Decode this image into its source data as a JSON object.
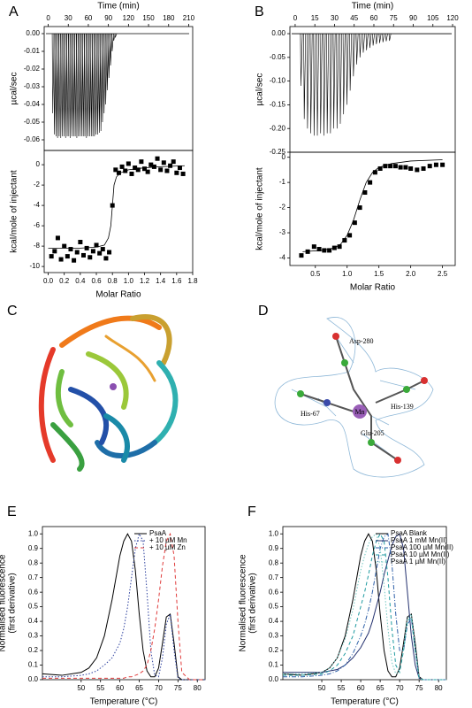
{
  "chart_data": [
    {
      "type": "spike",
      "panel": "A",
      "xlabel": "Time (min)",
      "xaxis": "top",
      "ylabel": [
        "µcal/sec"
      ],
      "color": "#000000",
      "x": [
        6,
        8.4,
        10.8,
        13.2,
        15.6,
        18,
        20.4,
        22.8,
        25.2,
        27.6,
        30,
        32.4,
        34.8,
        37.2,
        39.6,
        42,
        44.4,
        46.8,
        49.2,
        51.6,
        54,
        56.4,
        58.8,
        61.2,
        63.6,
        66,
        68.4,
        70.8,
        73.2,
        75.6,
        78,
        80.4,
        82.8,
        85.2,
        87.6,
        90,
        92.4,
        94.8,
        97.2,
        99.6
      ],
      "values": [
        -0.045,
        -0.057,
        -0.058,
        -0.059,
        -0.058,
        -0.059,
        -0.058,
        -0.058,
        -0.059,
        -0.058,
        -0.058,
        -0.059,
        -0.058,
        -0.058,
        -0.058,
        -0.059,
        -0.058,
        -0.058,
        -0.058,
        -0.058,
        -0.058,
        -0.059,
        -0.058,
        -0.058,
        -0.058,
        -0.058,
        -0.058,
        -0.057,
        -0.057,
        -0.056,
        -0.055,
        -0.05,
        -0.045,
        -0.04,
        -0.032,
        -0.025,
        -0.018,
        -0.01,
        -0.004,
        -0.002
      ],
      "xlim": [
        -6,
        216
      ],
      "xticks": [
        0,
        30,
        60,
        90,
        120,
        150,
        180,
        210
      ],
      "ylim": [
        -0.066,
        0.004
      ],
      "yticks": [
        {
          "value": 0,
          "label": "0.00"
        },
        -0.01,
        -0.02,
        -0.03,
        -0.04,
        -0.05,
        -0.06
      ]
    },
    {
      "type": "scatter",
      "xlabel": "Molar Ratio",
      "ylabel": [
        "kcal/mole of injectant"
      ],
      "color": "#000000",
      "x": [
        0.04,
        0.08,
        0.12,
        0.16,
        0.2,
        0.24,
        0.28,
        0.32,
        0.36,
        0.4,
        0.44,
        0.48,
        0.52,
        0.56,
        0.6,
        0.64,
        0.68,
        0.72,
        0.76,
        0.8,
        0.84,
        0.88,
        0.92,
        0.96,
        1.0,
        1.04,
        1.08,
        1.12,
        1.16,
        1.2,
        1.24,
        1.28,
        1.32,
        1.36,
        1.4,
        1.44,
        1.48,
        1.52,
        1.56,
        1.6,
        1.64,
        1.68
      ],
      "values": [
        -9.0,
        -8.5,
        -7.2,
        -9.3,
        -8.0,
        -9.0,
        -8.3,
        -9.4,
        -8.6,
        -7.6,
        -8.9,
        -8.2,
        -9.1,
        -8.5,
        -7.9,
        -8.7,
        -8.3,
        -9.2,
        -8.6,
        -4.0,
        -0.5,
        -0.8,
        -0.2,
        -0.6,
        0.1,
        -0.9,
        -0.3,
        -0.5,
        0.3,
        -0.4,
        -0.7,
        0.0,
        -0.2,
        0.6,
        -0.5,
        0.2,
        -0.6,
        -0.1,
        0.3,
        -0.8,
        -0.3,
        -0.9
      ],
      "fit": {
        "x": [
          0,
          0.2,
          0.4,
          0.6,
          0.7,
          0.75,
          0.78,
          0.8,
          0.82,
          0.85,
          0.9,
          1.0,
          1.2,
          1.4,
          1.7
        ],
        "values": [
          -8.2,
          -8.2,
          -8.2,
          -8.1,
          -7.9,
          -7.2,
          -6,
          -4,
          -2,
          -1.2,
          -0.8,
          -0.5,
          -0.3,
          -0.2,
          -0.1
        ]
      },
      "xlim": [
        -0.05,
        1.8
      ],
      "xticks": [
        {
          "value": 0,
          "label": "0.0"
        },
        0.2,
        0.4,
        0.6,
        0.8,
        {
          "value": 1,
          "label": "1.0"
        },
        1.2,
        1.4,
        1.6,
        1.8
      ],
      "ylim": [
        -10.6,
        1.4
      ],
      "yticks": [
        -10,
        -8,
        -6,
        -4,
        -2,
        0
      ]
    },
    {
      "type": "spike",
      "panel": "B",
      "xlabel": "Time (min)",
      "xaxis": "top",
      "ylabel": [
        "µcal/sec"
      ],
      "color": "#000000",
      "x": [
        4,
        6.5,
        9,
        11.5,
        14,
        16.5,
        19,
        21.5,
        24,
        26.5,
        29,
        31.5,
        34,
        36.5,
        39,
        41.5,
        44,
        46.5,
        49,
        51.5,
        54,
        56.5,
        59,
        61.5,
        64,
        66.5,
        69,
        71.5
      ],
      "values": [
        -0.11,
        -0.18,
        -0.2,
        -0.21,
        -0.215,
        -0.215,
        -0.21,
        -0.215,
        -0.21,
        -0.21,
        -0.2,
        -0.2,
        -0.19,
        -0.17,
        -0.15,
        -0.12,
        -0.09,
        -0.065,
        -0.05,
        -0.04,
        -0.035,
        -0.03,
        -0.025,
        -0.022,
        -0.02,
        -0.018,
        -0.016,
        -0.015
      ],
      "xlim": [
        -4,
        122
      ],
      "xticks": [
        0,
        15,
        30,
        45,
        60,
        75,
        90,
        105,
        120
      ],
      "ylim": [
        -0.25,
        0.015
      ],
      "yticks": [
        {
          "value": 0,
          "label": "0.00"
        },
        -0.05,
        {
          "value": -0.1,
          "label": "-0.10"
        },
        -0.15,
        {
          "value": -0.2,
          "label": "-0.20"
        },
        -0.25
      ]
    },
    {
      "type": "scatter",
      "xlabel": "Molar Ratio",
      "ylabel": [
        "kcal/mole of injectant"
      ],
      "color": "#000000",
      "x": [
        0.28,
        0.38,
        0.48,
        0.56,
        0.64,
        0.72,
        0.8,
        0.88,
        0.96,
        1.04,
        1.12,
        1.2,
        1.28,
        1.36,
        1.44,
        1.52,
        1.6,
        1.68,
        1.76,
        1.84,
        1.92,
        2.0,
        2.1,
        2.2,
        2.3,
        2.4,
        2.5
      ],
      "values": [
        -3.9,
        -3.75,
        -3.55,
        -3.65,
        -3.7,
        -3.7,
        -3.6,
        -3.55,
        -3.3,
        -3.1,
        -2.6,
        -2.0,
        -1.4,
        -1.0,
        -0.6,
        -0.45,
        -0.35,
        -0.35,
        -0.35,
        -0.4,
        -0.4,
        -0.45,
        -0.5,
        -0.45,
        -0.35,
        -0.3,
        -0.3
      ],
      "fit": {
        "x": [
          0.3,
          0.6,
          0.8,
          0.9,
          1.0,
          1.1,
          1.2,
          1.3,
          1.4,
          1.5,
          1.7,
          2.0,
          2.5
        ],
        "values": [
          -3.75,
          -3.7,
          -3.6,
          -3.45,
          -3.1,
          -2.5,
          -1.7,
          -1.0,
          -0.6,
          -0.4,
          -0.25,
          -0.15,
          -0.1
        ]
      },
      "xlim": [
        0.1,
        2.7
      ],
      "xticks": [
        0.5,
        {
          "value": 1,
          "label": "1.0"
        },
        1.5,
        {
          "value": 2,
          "label": "2.0"
        },
        2.5
      ],
      "ylim": [
        -4.3,
        0.2
      ],
      "yticks": [
        -4,
        -3,
        -2,
        -1,
        0
      ]
    },
    {
      "type": "line",
      "panel": "E",
      "xlabel": "Temperature (°C)",
      "ylabel": [
        "Normalised fluorescence",
        "(first derivative)"
      ],
      "legend": "top-right",
      "x": [
        40,
        45,
        50,
        52,
        54,
        56,
        58,
        60,
        61,
        62,
        63,
        64,
        65,
        66,
        67,
        68,
        69,
        70,
        71,
        72,
        73,
        74,
        75,
        76,
        78,
        82
      ],
      "series": [
        {
          "name": "PsaA",
          "color": "#000000",
          "dash": "solid",
          "values": [
            0.04,
            0.03,
            0.05,
            0.08,
            0.15,
            0.3,
            0.55,
            0.85,
            0.95,
            1.0,
            0.95,
            0.75,
            0.45,
            0.2,
            0.06,
            0.02,
            0.02,
            0.08,
            0.25,
            0.43,
            0.45,
            0.25,
            0.02,
            0,
            0,
            0
          ]
        },
        {
          "name": "+ 10 µM Mn",
          "color": "#2b3f9e",
          "dash": "dotted",
          "values": [
            0.02,
            0.02,
            0.03,
            0.04,
            0.06,
            0.1,
            0.15,
            0.25,
            0.35,
            0.5,
            0.7,
            0.9,
            1.0,
            0.95,
            0.6,
            0.2,
            0.03,
            0.02,
            0.15,
            0.38,
            0.45,
            0.2,
            0.01,
            0,
            0,
            0
          ]
        },
        {
          "name": "+ 10 µM Zn",
          "color": "#e03c3c",
          "dash": "dashed",
          "values": [
            0.01,
            0.01,
            0.01,
            0.01,
            0.01,
            0.01,
            0.01,
            0.01,
            0.01,
            0.02,
            0.02,
            0.03,
            0.04,
            0.06,
            0.1,
            0.2,
            0.35,
            0.55,
            0.78,
            0.95,
            1.0,
            0.85,
            0.4,
            0.05,
            0,
            0
          ]
        }
      ],
      "xlim": [
        40,
        82
      ],
      "xticks": [
        50,
        55,
        60,
        65,
        70,
        75,
        80
      ],
      "ylim": [
        0,
        1.05
      ],
      "yticks": [
        {
          "value": 0,
          "label": "0.0"
        },
        0.1,
        0.2,
        0.3,
        0.4,
        0.5,
        0.6,
        0.7,
        0.8,
        0.9,
        {
          "value": 1,
          "label": "1.0"
        }
      ]
    },
    {
      "type": "line",
      "panel": "F",
      "xlabel": "Temperature (°C)",
      "ylabel": [
        "Normalised fluorescence",
        "(first derivative)"
      ],
      "legend": "top-right",
      "x": [
        40,
        45,
        50,
        52,
        54,
        56,
        58,
        60,
        61,
        62,
        63,
        64,
        65,
        66,
        67,
        68,
        69,
        70,
        71,
        72,
        73,
        74,
        75,
        76,
        78,
        82
      ],
      "series": [
        {
          "name": "PsaA Blank",
          "color": "#000000",
          "dash": "solid",
          "values": [
            0.04,
            0.03,
            0.05,
            0.08,
            0.15,
            0.3,
            0.55,
            0.85,
            0.95,
            1.0,
            0.95,
            0.75,
            0.45,
            0.2,
            0.06,
            0.02,
            0.02,
            0.08,
            0.25,
            0.43,
            0.45,
            0.25,
            0.02,
            0,
            0,
            0
          ]
        },
        {
          "name": "PsaA 1 mM Mn(II)",
          "color": "#23306e",
          "dash": "solid",
          "values": [
            0.05,
            0.05,
            0.05,
            0.06,
            0.07,
            0.1,
            0.15,
            0.22,
            0.27,
            0.32,
            0.4,
            0.5,
            0.6,
            0.72,
            0.82,
            0.92,
            0.98,
            1.0,
            0.9,
            0.6,
            0.3,
            0.1,
            0.01,
            0,
            0,
            0
          ]
        },
        {
          "name": "PsaA 100 µM Mn(II)",
          "color": "#2d5fa8",
          "dash": "dashdot",
          "values": [
            0.02,
            0.02,
            0.03,
            0.04,
            0.06,
            0.1,
            0.18,
            0.3,
            0.38,
            0.48,
            0.6,
            0.75,
            0.9,
            0.98,
            1.0,
            0.8,
            0.45,
            0.2,
            0.2,
            0.38,
            0.42,
            0.2,
            0.01,
            0,
            0,
            0
          ]
        },
        {
          "name": "PsaA 10 µM Mn(II)",
          "color": "#1e9aa0",
          "dash": "dashed",
          "values": [
            0.03,
            0.03,
            0.04,
            0.06,
            0.1,
            0.18,
            0.3,
            0.5,
            0.6,
            0.72,
            0.85,
            0.95,
            1.0,
            0.95,
            0.7,
            0.35,
            0.1,
            0.05,
            0.2,
            0.4,
            0.43,
            0.2,
            0.01,
            0,
            0,
            0
          ]
        },
        {
          "name": "PsaA 1 µM Mn(II)",
          "color": "#6fc6c0",
          "dash": "dotted",
          "values": [
            0.04,
            0.04,
            0.05,
            0.08,
            0.15,
            0.28,
            0.48,
            0.75,
            0.85,
            0.93,
            0.98,
            1.0,
            0.9,
            0.65,
            0.35,
            0.12,
            0.04,
            0.05,
            0.22,
            0.42,
            0.45,
            0.22,
            0.01,
            0,
            0,
            0
          ]
        }
      ],
      "xlim": [
        40,
        82
      ],
      "xticks": [
        50,
        55,
        60,
        65,
        70,
        75,
        80
      ],
      "ylim": [
        0,
        1.05
      ],
      "yticks": [
        {
          "value": 0,
          "label": "0.0"
        },
        0.1,
        0.2,
        0.3,
        0.4,
        0.5,
        0.6,
        0.7,
        0.8,
        0.9,
        {
          "value": 1,
          "label": "1.0"
        }
      ]
    }
  ],
  "structure_panels": [
    {
      "panel": "C"
    },
    {
      "panel": "D",
      "labels": [
        "Asp-280",
        "His-139",
        "His-67",
        "Mn",
        "Glu-205"
      ]
    }
  ]
}
